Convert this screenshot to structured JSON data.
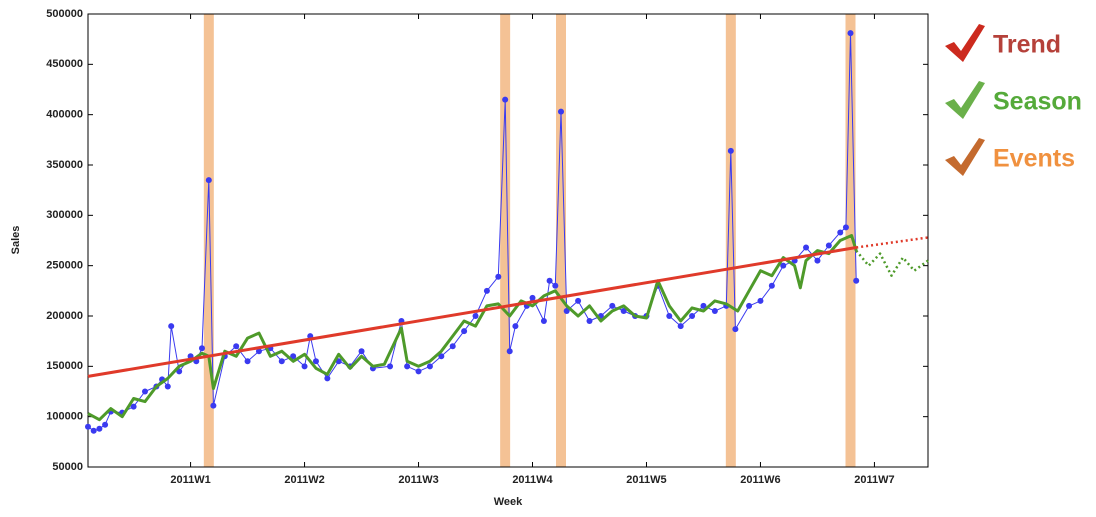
{
  "chart_data": {
    "type": "line",
    "x_label": "Week",
    "y_label": "Sales",
    "xlim": [
      0.1,
      7.47
    ],
    "ylim": [
      50000,
      500000
    ],
    "xticks": [
      {
        "value": 1,
        "label": "2011W1"
      },
      {
        "value": 2,
        "label": "2011W2"
      },
      {
        "value": 3,
        "label": "2011W3"
      },
      {
        "value": 4,
        "label": "2011W4"
      },
      {
        "value": 5,
        "label": "2011W5"
      },
      {
        "value": 6,
        "label": "2011W6"
      },
      {
        "value": 7,
        "label": "2011W7"
      }
    ],
    "yticks": [
      50000,
      100000,
      150000,
      200000,
      250000,
      300000,
      350000,
      400000,
      450000,
      500000
    ],
    "grid": false,
    "events": {
      "name": "Events",
      "color": "#f4c295",
      "legend_color": "#f0913f",
      "check_color": "#c46a2e",
      "x": [
        1.16,
        3.76,
        4.25,
        5.74,
        6.79
      ]
    },
    "series": [
      {
        "color": "#3a3af0",
        "markers": true,
        "x": [
          0.1,
          0.15,
          0.2,
          0.25,
          0.3,
          0.4,
          0.5,
          0.6,
          0.7,
          0.75,
          0.8,
          0.83,
          0.9,
          1.0,
          1.05,
          1.1,
          1.16,
          1.2,
          1.3,
          1.4,
          1.5,
          1.6,
          1.7,
          1.8,
          1.9,
          2.0,
          2.05,
          2.1,
          2.2,
          2.3,
          2.4,
          2.5,
          2.6,
          2.75,
          2.85,
          2.9,
          3.0,
          3.1,
          3.2,
          3.3,
          3.4,
          3.5,
          3.6,
          3.7,
          3.76,
          3.8,
          3.85,
          3.95,
          4.0,
          4.1,
          4.15,
          4.2,
          4.25,
          4.3,
          4.4,
          4.5,
          4.6,
          4.7,
          4.8,
          4.9,
          5.0,
          5.1,
          5.2,
          5.3,
          5.4,
          5.5,
          5.6,
          5.7,
          5.74,
          5.78,
          5.9,
          6.0,
          6.1,
          6.2,
          6.3,
          6.4,
          6.5,
          6.6,
          6.7,
          6.75,
          6.79,
          6.84
        ],
        "values": [
          90000,
          86000,
          88000,
          92000,
          105000,
          104000,
          110000,
          125000,
          130000,
          137000,
          130000,
          190000,
          145000,
          160000,
          155000,
          168000,
          335000,
          111000,
          160000,
          170000,
          155000,
          165000,
          168000,
          155000,
          160000,
          150000,
          180000,
          155000,
          138000,
          155000,
          150000,
          165000,
          148000,
          150000,
          195000,
          150000,
          145000,
          150000,
          160000,
          170000,
          185000,
          200000,
          225000,
          239000,
          415000,
          165000,
          190000,
          210000,
          218000,
          195000,
          235000,
          230000,
          403000,
          205000,
          215000,
          195000,
          200000,
          210000,
          205000,
          200000,
          200000,
          230000,
          200000,
          190000,
          200000,
          210000,
          205000,
          210000,
          364000,
          187000,
          210000,
          215000,
          230000,
          250000,
          255000,
          268000,
          255000,
          270000,
          283000,
          288000,
          481000,
          235000
        ]
      },
      {
        "name": "Season",
        "color": "#4e9a2a",
        "legend_color": "#55aa3a",
        "width": 3,
        "x": [
          0.1,
          0.2,
          0.3,
          0.4,
          0.5,
          0.6,
          0.7,
          0.8,
          0.9,
          1.0,
          1.1,
          1.16,
          1.2,
          1.3,
          1.4,
          1.5,
          1.6,
          1.7,
          1.8,
          1.9,
          2.0,
          2.1,
          2.2,
          2.3,
          2.4,
          2.5,
          2.6,
          2.7,
          2.85,
          2.9,
          3.0,
          3.1,
          3.2,
          3.3,
          3.4,
          3.5,
          3.6,
          3.7,
          3.8,
          3.9,
          4.0,
          4.1,
          4.2,
          4.3,
          4.4,
          4.5,
          4.6,
          4.7,
          4.8,
          4.9,
          5.0,
          5.1,
          5.2,
          5.3,
          5.4,
          5.5,
          5.6,
          5.7,
          5.8,
          5.9,
          6.0,
          6.1,
          6.2,
          6.3,
          6.35,
          6.4,
          6.5,
          6.6,
          6.7,
          6.8,
          6.84
        ],
        "values": [
          103000,
          97000,
          108000,
          100000,
          118000,
          115000,
          130000,
          138000,
          150000,
          155000,
          163000,
          160000,
          128000,
          165000,
          160000,
          178000,
          183000,
          160000,
          165000,
          155000,
          162000,
          148000,
          142000,
          162000,
          148000,
          160000,
          150000,
          152000,
          188000,
          155000,
          150000,
          155000,
          165000,
          180000,
          195000,
          190000,
          210000,
          212000,
          200000,
          215000,
          210000,
          220000,
          225000,
          210000,
          200000,
          210000,
          195000,
          205000,
          210000,
          200000,
          198000,
          235000,
          210000,
          195000,
          208000,
          205000,
          215000,
          212000,
          205000,
          225000,
          245000,
          240000,
          258000,
          250000,
          228000,
          255000,
          265000,
          262000,
          275000,
          280000,
          265000
        ]
      },
      {
        "color": "#4e9a2a",
        "dotted": true,
        "width": 2.5,
        "x": [
          6.84,
          6.95,
          7.05,
          7.15,
          7.25,
          7.35,
          7.47
        ],
        "values": [
          265000,
          250000,
          262000,
          240000,
          258000,
          245000,
          255000
        ]
      },
      {
        "name": "Trend",
        "color": "#e03a2a",
        "legend_color": "#b5413a",
        "width": 3,
        "x": [
          0.1,
          6.84
        ],
        "values": [
          140000,
          268000
        ]
      },
      {
        "color": "#e03a2a",
        "dotted": true,
        "width": 2.5,
        "x": [
          6.84,
          7.47
        ],
        "values": [
          268000,
          278000
        ]
      }
    ]
  }
}
